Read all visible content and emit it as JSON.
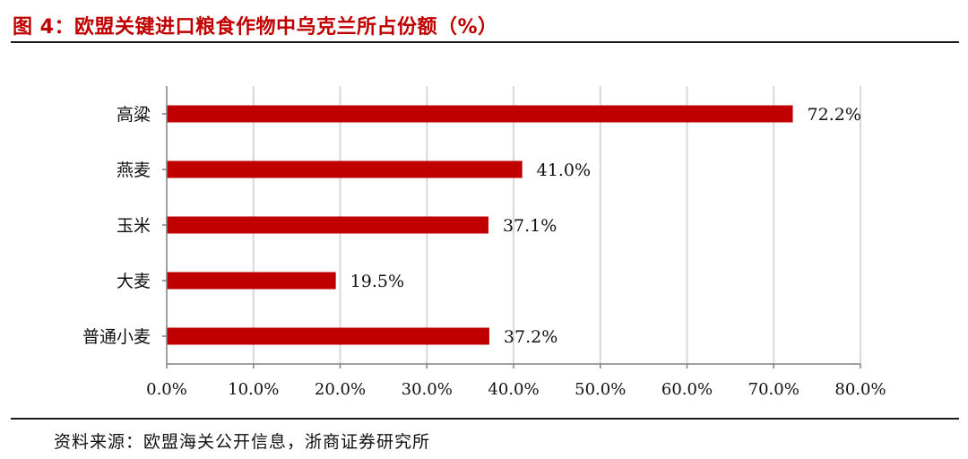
{
  "figure": {
    "title": "图 4：欧盟关键进口粮食作物中乌克兰所占份额（%）",
    "source": "资料来源：欧盟海关公开信息，浙商证券研究所"
  },
  "chart_data": {
    "type": "bar",
    "orientation": "horizontal",
    "categories": [
      "高粱",
      "燕麦",
      "玉米",
      "大麦",
      "普通小麦"
    ],
    "values": [
      72.2,
      41.0,
      37.1,
      19.5,
      37.2
    ],
    "value_labels": [
      "72.2%",
      "41.0%",
      "37.1%",
      "19.5%",
      "37.2%"
    ],
    "xlim": [
      0,
      80
    ],
    "xticks": [
      0,
      10,
      20,
      30,
      40,
      50,
      60,
      70,
      80
    ],
    "xtick_labels": [
      "0.0%",
      "10.0%",
      "20.0%",
      "30.0%",
      "40.0%",
      "50.0%",
      "60.0%",
      "70.0%",
      "80.0%"
    ],
    "bar_color": "#c00000",
    "grid": "vertical",
    "legend": "none"
  },
  "colors": {
    "accent": "#c00000",
    "grid": "#d9d9d9",
    "axis": "#808080"
  }
}
